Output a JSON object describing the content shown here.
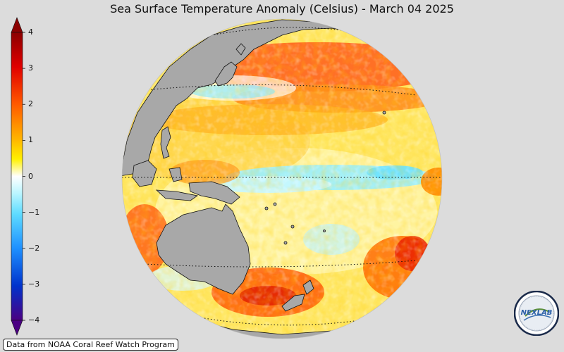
{
  "title": "Sea Surface Temperature Anomaly (Celsius) - March 04 2025",
  "credit": "Data from NOAA Coral Reef Watch Program",
  "logo": {
    "icon": "nexlab-logo",
    "text": "NEXLAB"
  },
  "colorbar": {
    "ticks": [
      "4",
      "3",
      "2",
      "1",
      "0",
      "−1",
      "−2",
      "−3",
      "−4"
    ],
    "colors": {
      "max": "#8b0000",
      "high": "#ff2a00",
      "warm": "#ff8c00",
      "mild": "#ffd200",
      "zero": "#ffffff",
      "cool": "#7fe9ff",
      "cold": "#1a7aff",
      "min": "#4b0082"
    }
  },
  "map": {
    "land_color": "#a8a8a8",
    "background": "#dcdcdc",
    "graticule_style": "dotted"
  }
}
